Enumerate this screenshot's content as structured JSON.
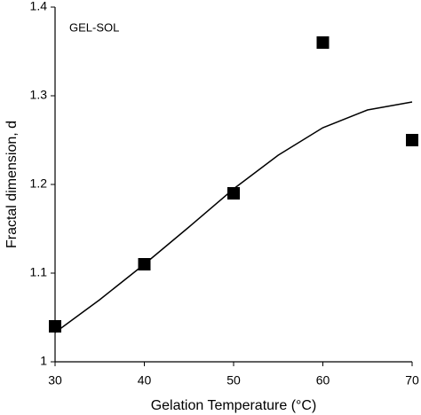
{
  "chart_data": {
    "type": "scatter",
    "annotation": "GEL-SOL",
    "x_label": "Gelation Temperature (°C)",
    "y_label": "Fractal dimension, d",
    "xlim": [
      30,
      70
    ],
    "xticks": [
      30,
      40,
      50,
      60,
      70
    ],
    "ylim": [
      1,
      1.4
    ],
    "yticks": [
      1,
      1.1,
      1.2,
      1.3,
      1.4
    ],
    "series": [
      {
        "type": "scatter",
        "color": "#000000",
        "x": [
          30,
          40,
          50,
          60,
          70
        ],
        "values": [
          1.04,
          1.11,
          1.19,
          1.36,
          1.25
        ]
      },
      {
        "type": "line",
        "color": "#000000",
        "x": [
          30,
          35,
          40,
          45,
          50,
          55,
          60,
          65,
          70
        ],
        "values": [
          1.033,
          1.07,
          1.11,
          1.152,
          1.195,
          1.233,
          1.264,
          1.284,
          1.293
        ]
      }
    ]
  }
}
